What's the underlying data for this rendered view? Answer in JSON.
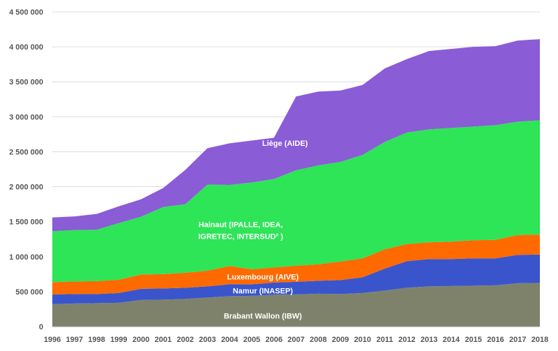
{
  "chart_data": {
    "type": "area",
    "stacked": true,
    "title": "",
    "xlabel": "",
    "ylabel": "",
    "grid": true,
    "ylim": [
      0,
      4500000
    ],
    "yticks": [
      0,
      500000,
      1000000,
      1500000,
      2000000,
      2500000,
      3000000,
      3500000,
      4000000,
      4500000
    ],
    "ytick_labels": [
      "0",
      "500 000",
      "1 000 000",
      "1 500 000",
      "2 000 000",
      "2 500 000",
      "3 000 000",
      "3 500 000",
      "4 000 000",
      "4 500 000"
    ],
    "x": [
      "1996",
      "1997",
      "1998",
      "1999",
      "2000",
      "2001",
      "2002",
      "2003",
      "2004",
      "2005",
      "2006",
      "2007",
      "2008",
      "2009",
      "2010",
      "2011",
      "2012",
      "2013",
      "2014",
      "2015",
      "2016",
      "2017",
      "2018"
    ],
    "series": [
      {
        "name": "Brabant Wallon (IBW)",
        "color": "#7f826b",
        "values": [
          320000,
          330000,
          335000,
          340000,
          380000,
          385000,
          395000,
          415000,
          435000,
          440000,
          455000,
          460000,
          470000,
          465000,
          480000,
          515000,
          555000,
          575000,
          580000,
          585000,
          590000,
          620000,
          625000
        ]
      },
      {
        "name": "Namur (INASEP)",
        "color": "#3a55cc",
        "values": [
          140000,
          135000,
          130000,
          140000,
          160000,
          160000,
          160000,
          160000,
          170000,
          165000,
          175000,
          180000,
          185000,
          200000,
          225000,
          315000,
          380000,
          390000,
          385000,
          390000,
          385000,
          405000,
          405000
        ]
      },
      {
        "name": "Luxembourg (AIVE)",
        "color": "#ff6a00",
        "values": [
          175000,
          180000,
          185000,
          190000,
          205000,
          205000,
          215000,
          225000,
          260000,
          215000,
          215000,
          230000,
          235000,
          265000,
          270000,
          275000,
          245000,
          240000,
          250000,
          260000,
          265000,
          285000,
          285000
        ]
      },
      {
        "name": "Hainaut (IPALLE, IDEA, IGRETEC, INTERSUD² )",
        "color": "#2ee457",
        "values": [
          730000,
          735000,
          735000,
          810000,
          825000,
          960000,
          980000,
          1230000,
          1160000,
          1240000,
          1265000,
          1365000,
          1415000,
          1425000,
          1480000,
          1535000,
          1595000,
          1615000,
          1625000,
          1625000,
          1640000,
          1620000,
          1635000
        ]
      },
      {
        "name": "Liège (AIDE)",
        "color": "#8a5cd6",
        "values": [
          195000,
          195000,
          225000,
          240000,
          250000,
          270000,
          490000,
          520000,
          595000,
          600000,
          590000,
          1055000,
          1055000,
          1020000,
          1000000,
          1050000,
          1050000,
          1120000,
          1130000,
          1140000,
          1130000,
          1160000,
          1160000
        ]
      }
    ]
  }
}
